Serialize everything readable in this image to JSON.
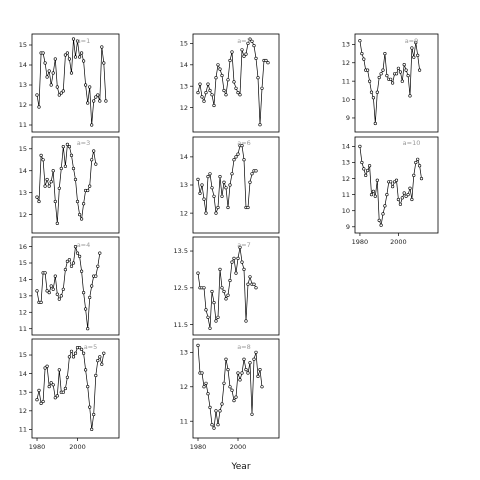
{
  "chart_data": {
    "type": "line",
    "xlabel": "Year",
    "x": [
      1980,
      1981,
      1982,
      1983,
      1984,
      1985,
      1986,
      1987,
      1988,
      1989,
      1990,
      1991,
      1992,
      1993,
      1994,
      1995,
      1996,
      1997,
      1998,
      1999,
      2000,
      2001,
      2002,
      2003,
      2004,
      2005,
      2006,
      2007,
      2008,
      2009,
      2010,
      2011,
      2012,
      2013,
      2014,
      2015,
      2016,
      2017,
      2018
    ],
    "xticks": [
      1980,
      2000
    ],
    "panels": [
      {
        "label": "a=1",
        "ylim": [
          10.8,
          15.4
        ],
        "yticks": [
          11,
          12,
          13,
          14,
          15
        ],
        "values": [
          12.5,
          11.9,
          14.6,
          14.6,
          14.1,
          13.4,
          13.7,
          13.0,
          13.6,
          14.3,
          12.9,
          12.5,
          12.6,
          12.7,
          14.5,
          14.6,
          14.3,
          13.6,
          15.3,
          14.4,
          15.2,
          14.4,
          14.6,
          14.2,
          13.0,
          12.1,
          12.9,
          11.0,
          12.2,
          12.4,
          12.5,
          12.2,
          14.9,
          14.1,
          12.2
        ]
      },
      {
        "label": "a=2",
        "ylim": [
          11.0,
          15.3
        ],
        "yticks": [
          12,
          13,
          14,
          15
        ],
        "values": [
          12.7,
          13.1,
          12.5,
          12.3,
          12.7,
          13.1,
          12.8,
          12.6,
          12.1,
          13.4,
          14.0,
          13.8,
          13.5,
          12.8,
          12.6,
          13.3,
          14.2,
          14.6,
          13.2,
          12.9,
          12.7,
          12.6,
          14.7,
          14.4,
          14.5,
          15.0,
          15.2,
          15.1,
          14.9,
          14.3,
          13.4,
          11.2,
          12.9,
          14.2,
          14.2,
          14.1
        ]
      },
      {
        "label": "a=9",
        "ylim": [
          8.4,
          13.4
        ],
        "yticks": [
          9,
          10,
          11,
          12,
          13
        ],
        "values": [
          13.2,
          12.5,
          12.2,
          11.6,
          11.6,
          11.0,
          10.4,
          10.1,
          8.7,
          10.4,
          11.2,
          11.4,
          11.6,
          12.5,
          11.3,
          11.1,
          11.1,
          10.9,
          11.4,
          11.4,
          11.7,
          11.5,
          11.0,
          11.9,
          11.6,
          11.3,
          10.2,
          12.8,
          12.3,
          13.1,
          12.4,
          11.6
        ]
      },
      {
        "label": "a=3",
        "ylim": [
          11.3,
          15.4
        ],
        "yticks": [
          12,
          13,
          14,
          15
        ],
        "values": [
          12.8,
          12.6,
          14.7,
          14.5,
          13.3,
          13.6,
          13.3,
          13.5,
          14.0,
          12.6,
          11.6,
          13.2,
          14.1,
          15.1,
          14.2,
          15.2,
          15.1,
          14.7,
          14.1,
          13.6,
          12.6,
          12.0,
          11.8,
          12.5,
          13.1,
          13.1,
          13.3,
          14.5,
          14.9,
          14.3
        ]
      },
      {
        "label": "a=6",
        "ylim": [
          11.4,
          14.6
        ],
        "yticks": [
          12,
          13,
          14
        ],
        "values": [
          13.2,
          12.7,
          13.0,
          12.5,
          12.0,
          13.3,
          13.4,
          12.9,
          12.6,
          12.0,
          12.2,
          13.3,
          12.6,
          13.1,
          12.9,
          12.2,
          13.0,
          13.4,
          13.9,
          14.0,
          14.1,
          14.4,
          14.4,
          13.9,
          12.2,
          12.2,
          13.1,
          13.4,
          13.5,
          13.5
        ]
      },
      {
        "label": "a=10",
        "ylim": [
          8.8,
          14.4
        ],
        "yticks": [
          9,
          10,
          11,
          12,
          13,
          14
        ],
        "values": [
          14.0,
          13.0,
          12.6,
          12.2,
          12.5,
          12.8,
          11.0,
          11.2,
          10.9,
          11.9,
          9.4,
          9.1,
          9.8,
          10.3,
          11.0,
          11.8,
          11.8,
          11.5,
          11.8,
          11.9,
          10.7,
          10.4,
          10.8,
          11.1,
          10.9,
          11.0,
          11.4,
          10.7,
          12.2,
          13.0,
          13.2,
          12.8,
          12.0
        ]
      },
      {
        "label": "a=4",
        "ylim": [
          10.8,
          16.4
        ],
        "yticks": [
          11,
          12,
          13,
          14,
          15,
          16
        ],
        "values": [
          13.3,
          12.6,
          12.6,
          14.4,
          14.4,
          13.3,
          13.2,
          13.6,
          13.4,
          14.2,
          13.1,
          12.8,
          13.0,
          13.4,
          14.6,
          15.1,
          15.2,
          14.8,
          15.0,
          16.0,
          15.6,
          15.4,
          14.5,
          13.2,
          12.2,
          11.0,
          12.9,
          13.6,
          14.2,
          14.2,
          14.8,
          15.6
        ]
      },
      {
        "label": "a=7",
        "ylim": [
          11.3,
          13.8
        ],
        "yticks": [
          11.5,
          12.5,
          13.5
        ],
        "values": [
          12.9,
          12.5,
          12.5,
          12.5,
          11.9,
          11.7,
          11.4,
          12.4,
          12.1,
          11.6,
          11.7,
          13.0,
          12.5,
          12.4,
          12.2,
          12.3,
          12.7,
          13.2,
          13.3,
          12.9,
          13.3,
          13.6,
          13.2,
          13.0,
          11.6,
          12.6,
          12.8,
          12.6,
          12.6,
          12.5
        ]
      },
      {
        "label": "a=5",
        "ylim": [
          10.7,
          15.7
        ],
        "yticks": [
          11,
          12,
          13,
          14,
          15
        ],
        "values": [
          12.6,
          13.1,
          12.4,
          12.5,
          14.3,
          14.4,
          13.3,
          13.5,
          13.4,
          12.7,
          12.8,
          14.2,
          13.0,
          13.0,
          13.2,
          13.8,
          14.9,
          15.2,
          14.9,
          15.1,
          15.4,
          15.4,
          15.3,
          15.1,
          14.2,
          13.3,
          12.2,
          11.0,
          11.8,
          13.9,
          14.7,
          14.9,
          14.5,
          15.1
        ]
      },
      {
        "label": "a=8",
        "ylim": [
          10.6,
          13.3
        ],
        "yticks": [
          11.0,
          12.0,
          13.0
        ],
        "values": [
          13.2,
          12.4,
          12.4,
          12.0,
          12.1,
          11.8,
          11.4,
          10.9,
          10.8,
          11.3,
          10.9,
          11.3,
          11.5,
          12.1,
          12.8,
          12.5,
          12.0,
          11.9,
          11.6,
          11.7,
          12.4,
          12.2,
          12.4,
          12.8,
          12.5,
          12.4,
          12.7,
          11.2,
          12.8,
          13.0,
          12.3,
          12.5,
          12.0
        ]
      }
    ]
  }
}
